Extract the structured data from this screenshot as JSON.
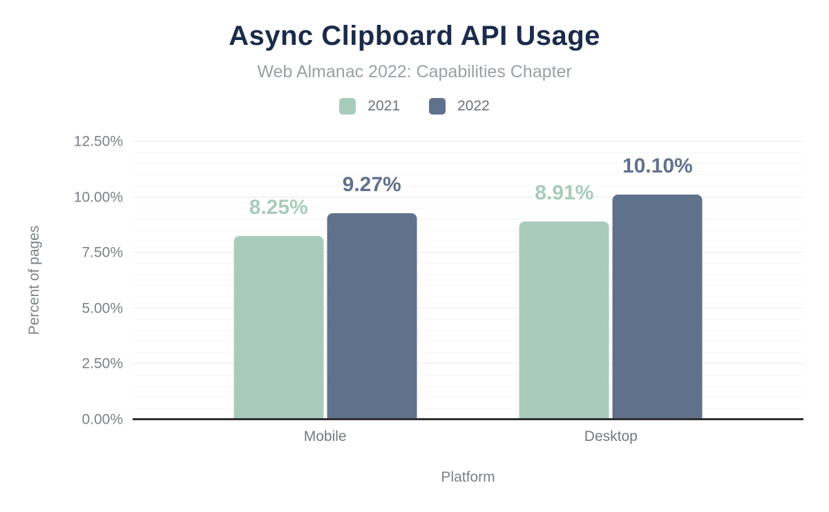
{
  "chart_data": {
    "type": "bar",
    "title": "Async Clipboard API Usage",
    "subtitle": "Web Almanac 2022: Capabilities Chapter",
    "categories": [
      "Mobile",
      "Desktop"
    ],
    "series": [
      {
        "name": "2021",
        "color": "#a8cbbc",
        "values": [
          8.25,
          8.91
        ],
        "data_labels": [
          "8.25%",
          "8.91%"
        ]
      },
      {
        "name": "2022",
        "color": "#60718c",
        "values": [
          9.27,
          10.1
        ],
        "data_labels": [
          "9.27%",
          "10.10%"
        ]
      }
    ],
    "xlabel": "Platform",
    "ylabel": "Percent of pages",
    "ylim": [
      0,
      12.5
    ],
    "yticks": [
      {
        "v": 0,
        "label": "0.00%"
      },
      {
        "v": 2.5,
        "label": "2.50%"
      },
      {
        "v": 5,
        "label": "5.00%"
      },
      {
        "v": 7.5,
        "label": "7.50%"
      },
      {
        "v": 10,
        "label": "10.00%"
      },
      {
        "v": 12.5,
        "label": "12.50%"
      }
    ],
    "minor_tick_step": 0.5,
    "grid": true,
    "legend_position": "top",
    "colors": {
      "title": "#1b2b4b",
      "subtitle": "#9aa0a8",
      "legend_text": "#6d7278",
      "axis_text": "#7c8187",
      "category_text": "#74797f",
      "axis_line": "#2f2f2f",
      "grid_major": "#e9e9e9",
      "grid_minor": "#f5f5f5",
      "background": "#ffffff"
    }
  }
}
